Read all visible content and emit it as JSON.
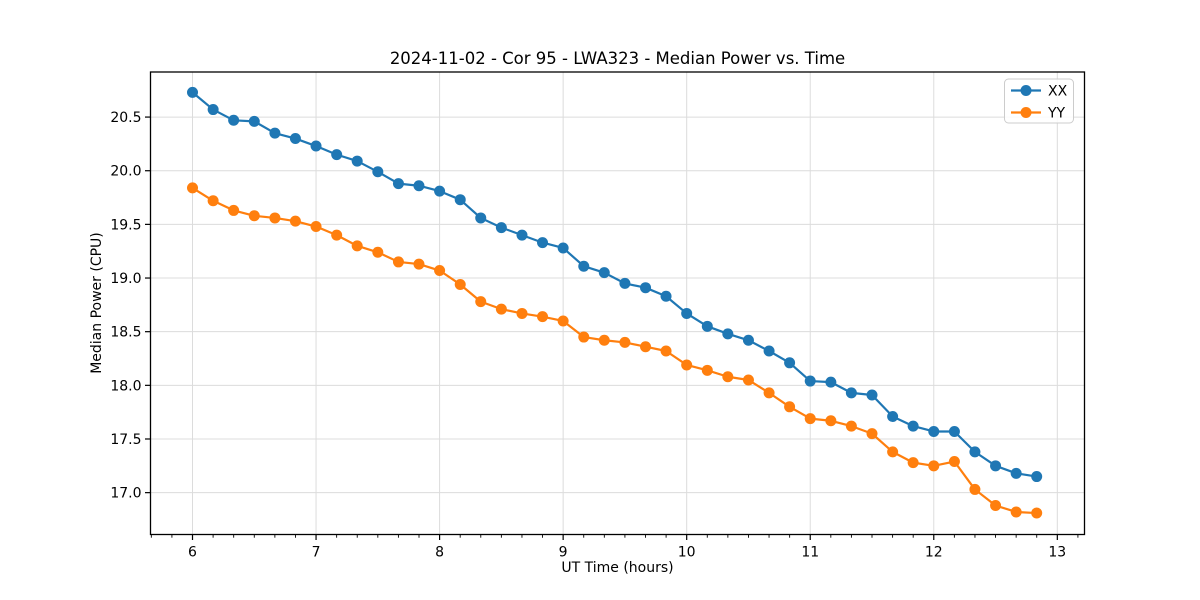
{
  "figure": {
    "background_color": "#ffffff",
    "grid_color": "#dcdcdc",
    "spine_color": "#000000"
  },
  "chart_data": {
    "type": "line",
    "title": "2024-11-02 - Cor 95 - LWA323 - Median Power vs. Time",
    "xlabel": "UT Time (hours)",
    "ylabel": "Median Power (CPU)",
    "xlim": [
      5.66,
      13.22
    ],
    "ylim": [
      16.61,
      20.92
    ],
    "xticks": [
      6,
      7,
      8,
      9,
      10,
      11,
      12,
      13
    ],
    "yticks": [
      17.0,
      17.5,
      18.0,
      18.5,
      19.0,
      19.5,
      20.0,
      20.5
    ],
    "minor_xtick_step": 0.16667,
    "grid": true,
    "legend_position": "upper right",
    "x": [
      6.0,
      6.167,
      6.333,
      6.5,
      6.667,
      6.833,
      7.0,
      7.167,
      7.333,
      7.5,
      7.667,
      7.833,
      8.0,
      8.167,
      8.333,
      8.5,
      8.667,
      8.833,
      9.0,
      9.167,
      9.333,
      9.5,
      9.667,
      9.833,
      10.0,
      10.167,
      10.333,
      10.5,
      10.667,
      10.833,
      11.0,
      11.167,
      11.333,
      11.5,
      11.667,
      11.833,
      12.0,
      12.167,
      12.333,
      12.5,
      12.667,
      12.833
    ],
    "series": [
      {
        "name": "XX",
        "color": "#1f77b4",
        "values": [
          20.73,
          20.57,
          20.47,
          20.46,
          20.35,
          20.3,
          20.23,
          20.15,
          20.09,
          19.99,
          19.88,
          19.86,
          19.81,
          19.73,
          19.56,
          19.47,
          19.4,
          19.33,
          19.28,
          19.11,
          19.05,
          18.95,
          18.91,
          18.83,
          18.67,
          18.55,
          18.48,
          18.42,
          18.32,
          18.21,
          18.04,
          18.03,
          17.93,
          17.91,
          17.71,
          17.62,
          17.57,
          17.57,
          17.38,
          17.25,
          17.18,
          17.15
        ]
      },
      {
        "name": "YY",
        "color": "#ff7f0e",
        "values": [
          19.84,
          19.72,
          19.63,
          19.58,
          19.56,
          19.53,
          19.48,
          19.4,
          19.3,
          19.24,
          19.15,
          19.13,
          19.07,
          18.94,
          18.78,
          18.71,
          18.67,
          18.64,
          18.6,
          18.45,
          18.42,
          18.4,
          18.36,
          18.32,
          18.19,
          18.14,
          18.08,
          18.05,
          17.93,
          17.8,
          17.69,
          17.67,
          17.62,
          17.55,
          17.38,
          17.28,
          17.25,
          17.29,
          17.03,
          16.88,
          16.82,
          16.81
        ]
      }
    ]
  }
}
